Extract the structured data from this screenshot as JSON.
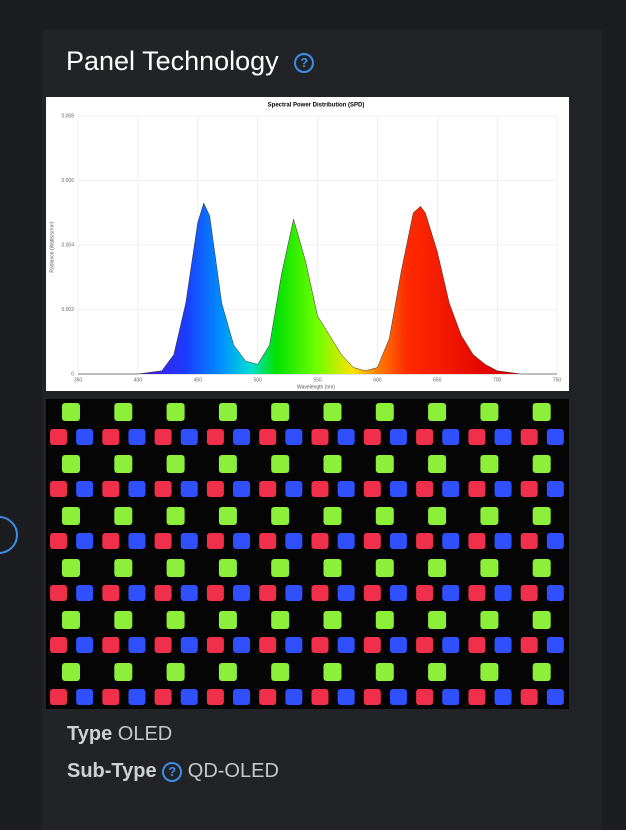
{
  "header": {
    "title": "Panel Technology"
  },
  "chart_data": {
    "type": "area",
    "title": "Spectral Power Distribution (SPD)",
    "x_label": "Wavelength (nm)",
    "y_label": "Radiance (Watts/sr/m²)",
    "x": [
      350,
      400,
      420,
      430,
      440,
      450,
      455,
      460,
      470,
      480,
      490,
      500,
      510,
      520,
      530,
      540,
      550,
      560,
      570,
      580,
      590,
      600,
      610,
      620,
      630,
      636,
      640,
      650,
      660,
      670,
      680,
      690,
      700,
      720,
      750
    ],
    "values": [
      0,
      0,
      0.0001,
      0.0006,
      0.0022,
      0.0047,
      0.0053,
      0.0049,
      0.0022,
      0.0009,
      0.0004,
      0.0003,
      0.0009,
      0.0031,
      0.0048,
      0.0035,
      0.0018,
      0.0012,
      0.0006,
      0.0002,
      0.0001,
      0.0002,
      0.0011,
      0.0032,
      0.005,
      0.0052,
      0.005,
      0.0038,
      0.0022,
      0.0012,
      0.0006,
      0.0003,
      0.0001,
      0,
      0
    ],
    "xlim": [
      350,
      750
    ],
    "xticks": [
      350,
      400,
      450,
      500,
      550,
      600,
      650,
      700,
      750
    ],
    "ylim": [
      0,
      0.008
    ],
    "yticks": [
      0,
      0.002,
      0.004,
      0.006,
      0.008
    ],
    "grid": true
  },
  "specs": [
    {
      "label": "Type",
      "value": "OLED"
    },
    {
      "label": "Sub-Type",
      "value": "QD-OLED"
    }
  ]
}
